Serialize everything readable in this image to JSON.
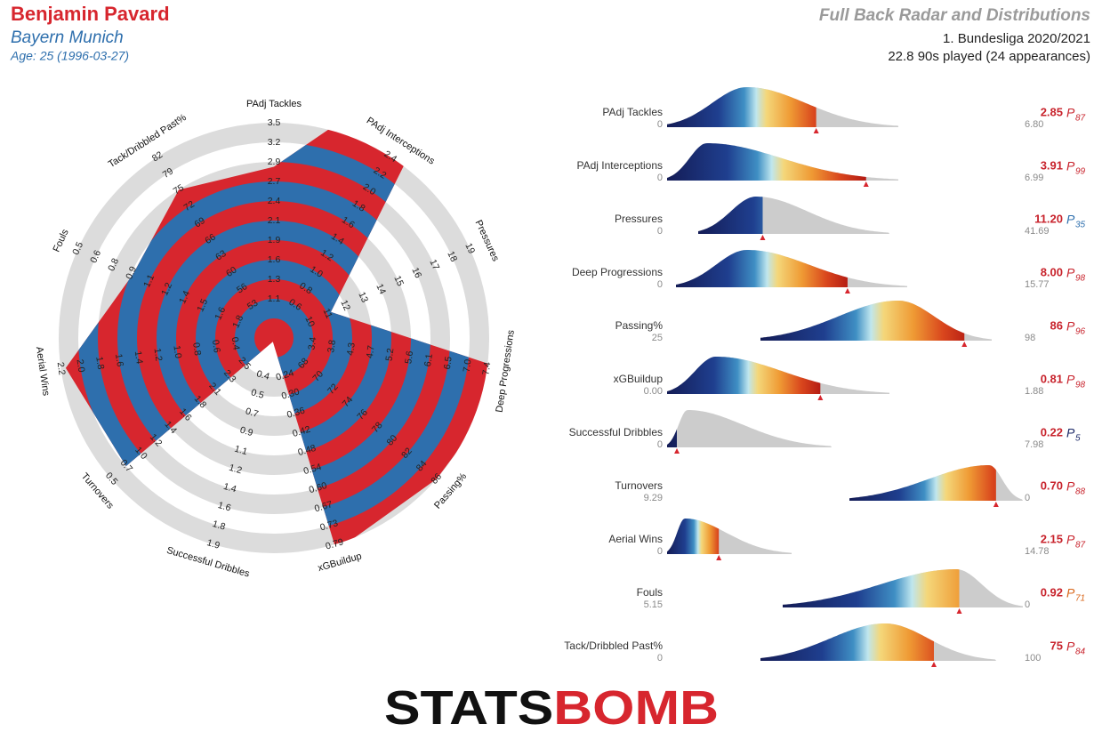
{
  "header": {
    "player": "Benjamin Pavard",
    "team": "Bayern Munich",
    "age": "Age: 25 (1996-03-27)",
    "competition": "1. Bundesliga 2020/2021",
    "minutes": "22.8 90s played (24 appearances)",
    "percentile_symbol": "P",
    "logo": {
      "first": "STATS",
      "second": "BOMB"
    }
  },
  "chart_data": {
    "type": "radar",
    "title": "Full Back Radar and Distributions",
    "categories": [
      "PAdj Tackles",
      "PAdj Interceptions",
      "Pressures",
      "Deep Progressions",
      "Passing%",
      "xGBuildup",
      "Successful Dribbles",
      "Turnovers",
      "Aerial Wins",
      "Fouls",
      "Tack/Dribbled Past%"
    ],
    "values": [
      2.85,
      3.91,
      11.2,
      8,
      86,
      0.81,
      0.22,
      0.7,
      2.15,
      0.92,
      75
    ],
    "value_labels": [
      "2.85",
      "3.91",
      "11.20",
      "8.00",
      "86",
      "0.81",
      "0.22",
      "0.70",
      "2.15",
      "0.92",
      "75"
    ],
    "percentiles": [
      87,
      99,
      35,
      98,
      96,
      98,
      5,
      88,
      87,
      71,
      84
    ],
    "ranges": [
      [
        0,
        {
          "value": 6.8,
          "label": "6.80"
        }
      ],
      [
        0,
        6.99
      ],
      [
        0,
        41.69
      ],
      [
        0,
        15.77
      ],
      [
        25,
        98
      ],
      [
        {
          "value": 0,
          "label": "0.00"
        },
        1.88
      ],
      [
        0,
        7.98
      ],
      [
        9.29,
        0
      ],
      [
        0,
        14.78
      ],
      [
        5.15,
        0
      ],
      [
        0,
        100
      ]
    ],
    "axis_ticks": [
      [
        1.1,
        1.3,
        1.6,
        1.9,
        2.1,
        2.4,
        2.7,
        2.9,
        3.2,
        3.5
      ],
      [
        0.6,
        0.8,
        {
          "value": 1,
          "label": "1.0"
        },
        1.2,
        1.4,
        1.6,
        1.8,
        {
          "value": 2,
          "label": "2.0"
        },
        2.2,
        2.4
      ],
      [
        10,
        11,
        12,
        13,
        14,
        15,
        16,
        17,
        18,
        19
      ],
      [
        3.4,
        3.8,
        4.3,
        4.7,
        5.2,
        5.6,
        6.1,
        6.5,
        {
          "value": 7,
          "label": "7.0"
        },
        7.4
      ],
      [
        68,
        70,
        72,
        74,
        76,
        78,
        80,
        82,
        84,
        86
      ],
      [
        0.24,
        {
          "value": 0.3,
          "label": "0.30"
        },
        0.36,
        0.42,
        0.48,
        0.54,
        {
          "value": 0.6,
          "label": "0.60"
        },
        0.67,
        0.73,
        0.79
      ],
      [
        0.4,
        0.5,
        0.7,
        0.9,
        1.1,
        1.2,
        1.4,
        1.6,
        1.8,
        1.9
      ],
      [
        2.5,
        2.3,
        2.1,
        1.8,
        1.6,
        1.4,
        1.2,
        {
          "value": 1,
          "label": "1.0"
        },
        0.7,
        0.5
      ],
      [
        0.4,
        0.6,
        0.8,
        {
          "value": 1,
          "label": "1.0"
        },
        1.2,
        1.4,
        1.6,
        1.8,
        {
          "value": 2,
          "label": "2.0"
        },
        2.2
      ],
      [
        1.8,
        1.6,
        1.5,
        1.4,
        1.2,
        1.1,
        0.9,
        0.8,
        0.6,
        0.5
      ],
      [
        53,
        56,
        60,
        63,
        66,
        69,
        72,
        75,
        79,
        82
      ]
    ]
  }
}
